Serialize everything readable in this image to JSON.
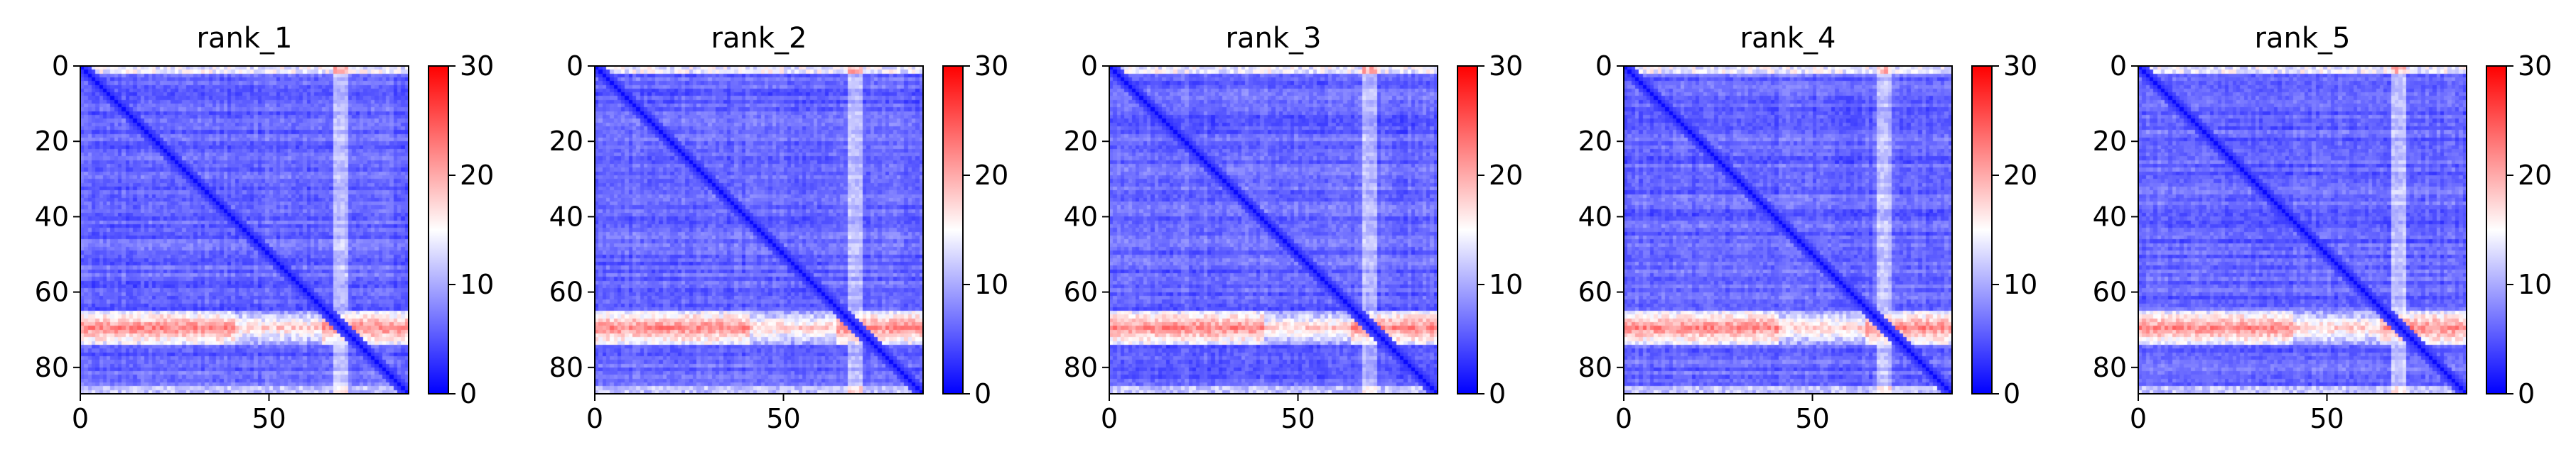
{
  "chart_data": [
    {
      "type": "heatmap",
      "title": "rank_1",
      "xlabel": "",
      "ylabel": "",
      "xlim": [
        0,
        87
      ],
      "ylim": [
        87,
        0
      ],
      "x_ticks": [
        "0",
        "50"
      ],
      "y_ticks": [
        "0",
        "20",
        "40",
        "60",
        "80"
      ],
      "colorbar": {
        "min": 0,
        "max": 30,
        "ticks": [
          "0",
          "10",
          "20",
          "30"
        ],
        "colormap": "bwr"
      },
      "matrix_size": 87,
      "value_range": [
        0,
        30
      ],
      "features": {
        "diagonal_value": 0.5,
        "background_value": 6,
        "high_band_rows": [
          65,
          73
        ],
        "high_band_value": 22,
        "light_column": [
          67,
          70
        ]
      }
    },
    {
      "type": "heatmap",
      "title": "rank_2",
      "xlabel": "",
      "ylabel": "",
      "xlim": [
        0,
        87
      ],
      "ylim": [
        87,
        0
      ],
      "x_ticks": [
        "0",
        "50"
      ],
      "y_ticks": [
        "0",
        "20",
        "40",
        "60",
        "80"
      ],
      "colorbar": {
        "min": 0,
        "max": 30,
        "ticks": [
          "0",
          "10",
          "20",
          "30"
        ],
        "colormap": "bwr"
      },
      "matrix_size": 87,
      "value_range": [
        0,
        30
      ],
      "features": {
        "diagonal_value": 0.5,
        "background_value": 6,
        "high_band_rows": [
          65,
          73
        ],
        "high_band_value": 22,
        "light_column": [
          67,
          70
        ]
      }
    },
    {
      "type": "heatmap",
      "title": "rank_3",
      "xlabel": "",
      "ylabel": "",
      "xlim": [
        0,
        87
      ],
      "ylim": [
        87,
        0
      ],
      "x_ticks": [
        "0",
        "50"
      ],
      "y_ticks": [
        "0",
        "20",
        "40",
        "60",
        "80"
      ],
      "colorbar": {
        "min": 0,
        "max": 30,
        "ticks": [
          "0",
          "10",
          "20",
          "30"
        ],
        "colormap": "bwr"
      },
      "matrix_size": 87,
      "value_range": [
        0,
        30
      ],
      "features": {
        "diagonal_value": 0.5,
        "background_value": 6,
        "high_band_rows": [
          65,
          73
        ],
        "high_band_value": 22,
        "light_column": [
          67,
          70
        ]
      }
    },
    {
      "type": "heatmap",
      "title": "rank_4",
      "xlabel": "",
      "ylabel": "",
      "xlim": [
        0,
        87
      ],
      "ylim": [
        87,
        0
      ],
      "x_ticks": [
        "0",
        "50"
      ],
      "y_ticks": [
        "0",
        "20",
        "40",
        "60",
        "80"
      ],
      "colorbar": {
        "min": 0,
        "max": 30,
        "ticks": [
          "0",
          "10",
          "20",
          "30"
        ],
        "colormap": "bwr"
      },
      "matrix_size": 87,
      "value_range": [
        0,
        30
      ],
      "features": {
        "diagonal_value": 0.5,
        "background_value": 6,
        "high_band_rows": [
          65,
          73
        ],
        "high_band_value": 22,
        "light_column": [
          67,
          70
        ]
      }
    },
    {
      "type": "heatmap",
      "title": "rank_5",
      "xlabel": "",
      "ylabel": "",
      "xlim": [
        0,
        87
      ],
      "ylim": [
        87,
        0
      ],
      "x_ticks": [
        "0",
        "50"
      ],
      "y_ticks": [
        "0",
        "20",
        "40",
        "60",
        "80"
      ],
      "colorbar": {
        "min": 0,
        "max": 30,
        "ticks": [
          "0",
          "10",
          "20",
          "30"
        ],
        "colormap": "bwr"
      },
      "matrix_size": 87,
      "value_range": [
        0,
        30
      ],
      "features": {
        "diagonal_value": 0.5,
        "background_value": 6,
        "high_band_rows": [
          65,
          73
        ],
        "high_band_value": 22,
        "light_column": [
          67,
          70
        ]
      }
    }
  ]
}
